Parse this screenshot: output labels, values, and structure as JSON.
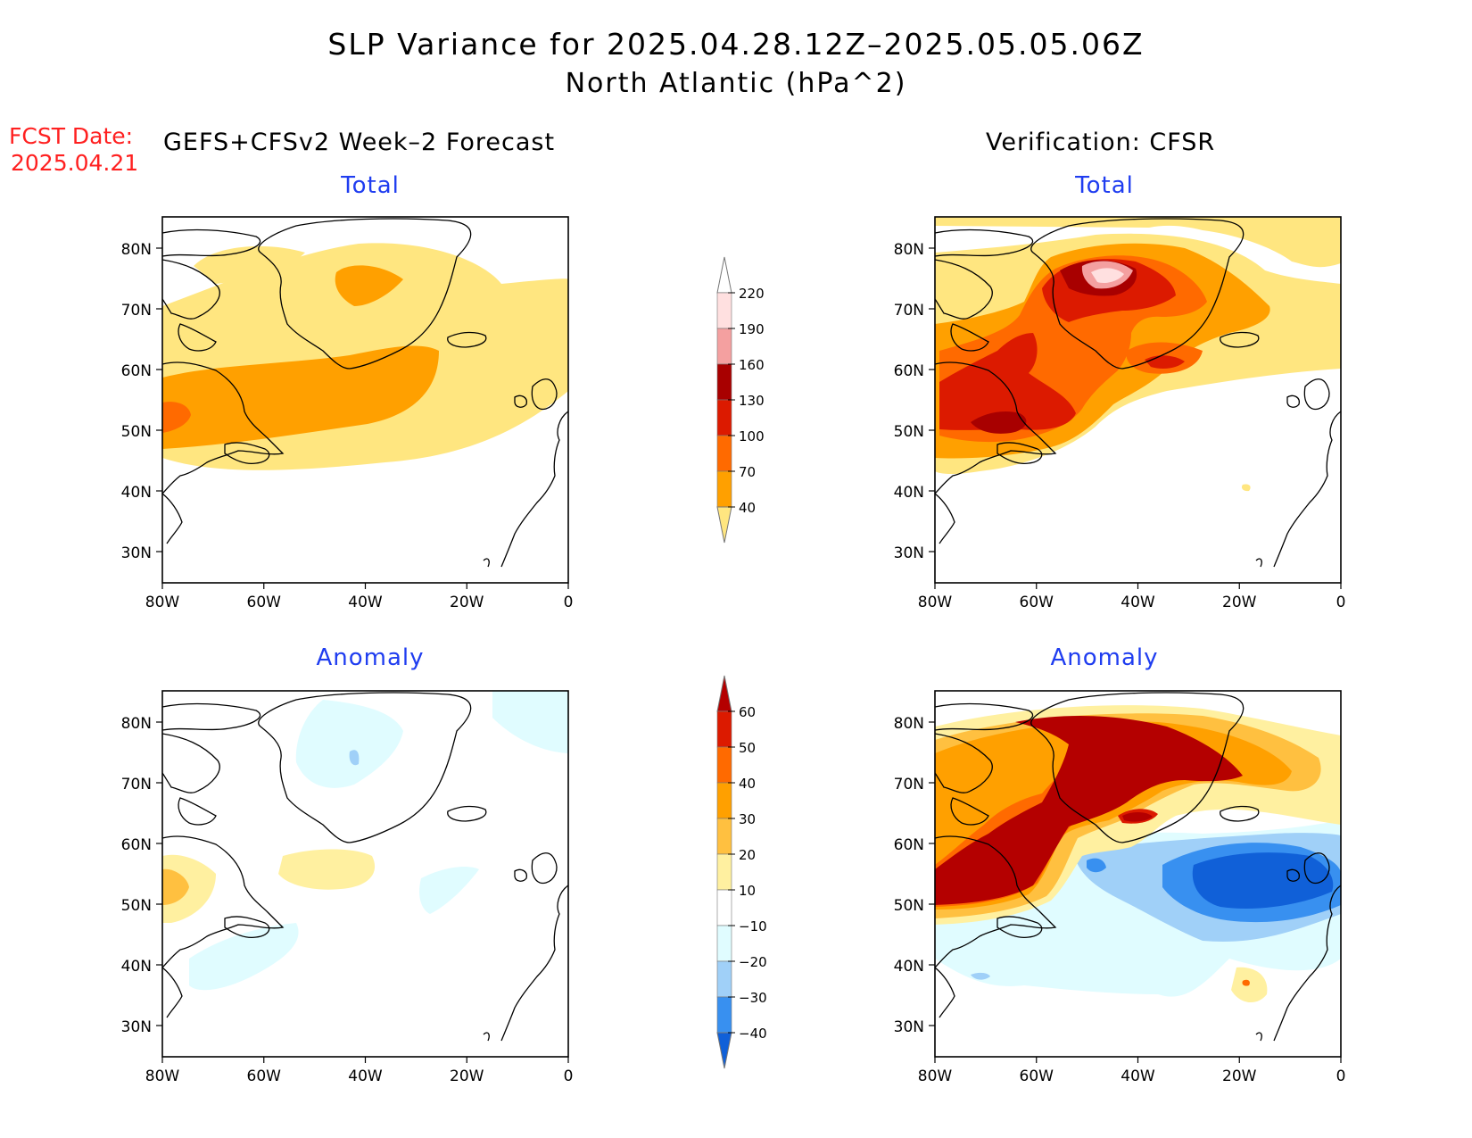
{
  "title": {
    "line1": "SLP Variance for 2025.04.28.12Z–2025.05.05.06Z",
    "line2": "North Atlantic (hPa^2)"
  },
  "fcst": {
    "line1": "FCST Date:",
    "line2": "2025.04.21"
  },
  "left_header": "GEFS+CFSv2 Week–2 Forecast",
  "right_header": "Verification: CFSR",
  "panel_titles": {
    "left_total": "Total",
    "right_total": "Total",
    "left_anomaly": "Anomaly",
    "right_anomaly": "Anomaly"
  },
  "axes": {
    "lat_labels": [
      "80N",
      "70N",
      "60N",
      "50N",
      "40N",
      "30N"
    ],
    "lon_labels": [
      "80W",
      "60W",
      "40W",
      "20W",
      "0"
    ]
  },
  "colorbar_total": {
    "levels": [
      "220",
      "190",
      "160",
      "130",
      "100",
      "70",
      "40"
    ],
    "colors": [
      "#ffe0e0",
      "#f4a0a0",
      "#a80000",
      "#dc1a00",
      "#ff6a00",
      "#ffa000",
      "#ffe680"
    ]
  },
  "colorbar_anomaly": {
    "levels": [
      "60",
      "50",
      "40",
      "30",
      "20",
      "10",
      "−10",
      "−20",
      "−30",
      "−40"
    ],
    "colors": [
      "#b40000",
      "#dc1a00",
      "#ff6a00",
      "#ffa000",
      "#ffc040",
      "#fff0a0",
      "#ffffff",
      "#e0fcff",
      "#a0d0f8",
      "#3890f0",
      "#1060d8"
    ]
  },
  "colors": {
    "title_red": "#ff2020",
    "panel_title_blue": "#1f3df0"
  }
}
